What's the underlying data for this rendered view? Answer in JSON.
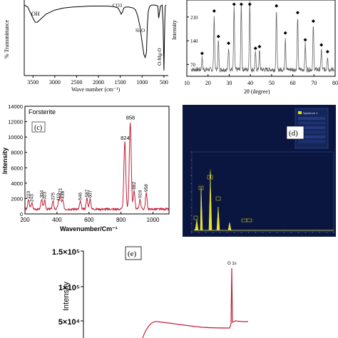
{
  "chart_data": [
    {
      "id": "a",
      "type": "line",
      "xlabel": "Wave number (cm⁻¹)",
      "ylabel": "% Transmittance",
      "x_ticks": [
        "3500",
        "3000",
        "2500",
        "2000",
        "1500",
        "1000",
        "500"
      ],
      "xlim": [
        3700,
        400
      ],
      "annotations": [
        "OH",
        "CO3",
        "Si-O",
        "O-Mg-O"
      ],
      "series": [
        {
          "x": [
            3750,
            3620,
            3500,
            3450,
            3400,
            3300,
            3200,
            3000,
            2800,
            2600,
            2400,
            2200,
            2000,
            1800,
            1650,
            1550,
            1500,
            1480,
            1450,
            1420,
            1380,
            1300,
            1200,
            1150,
            1100,
            1050,
            1000,
            960,
            930,
            900,
            880,
            860,
            840,
            820,
            780,
            700,
            640,
            620,
            600,
            580,
            540,
            520,
            500,
            480,
            470,
            450
          ],
          "y": [
            95,
            93,
            82,
            78,
            78,
            82,
            86,
            90,
            92,
            93,
            93.5,
            94,
            94,
            94,
            93.5,
            92,
            88,
            86,
            88,
            92,
            93,
            93,
            92,
            90,
            84,
            74,
            58,
            46,
            43,
            48,
            74,
            88,
            92,
            94,
            95,
            95,
            94,
            82,
            88,
            94,
            95,
            78,
            30,
            80,
            94,
            95
          ]
        }
      ]
    },
    {
      "id": "b",
      "type": "line",
      "xlabel": "2θ (degree)",
      "ylabel": "Intensity",
      "x_ticks": [
        "10",
        "20",
        "30",
        "40",
        "50",
        "60",
        "70",
        "80"
      ],
      "y_ticks": [
        "70",
        "140",
        "210"
      ],
      "xlim": [
        10,
        80
      ],
      "ylim": [
        35,
        260
      ],
      "peaks_2theta": [
        17.2,
        22.9,
        24.9,
        29.7,
        32.3,
        35.7,
        39.7,
        42.4,
        44.3,
        52.3,
        56.5,
        62.3,
        65.9,
        69.7,
        73.5,
        76.4
      ],
      "peaks_intensity": [
        90,
        215,
        140,
        120,
        235,
        250,
        255,
        105,
        110,
        230,
        150,
        210,
        130,
        185,
        115,
        95
      ]
    },
    {
      "id": "c",
      "type": "line",
      "title": "Forsterite",
      "panel_label": "(c)",
      "xlabel": "Wavenumber/Cm⁻¹",
      "ylabel": "Intensity",
      "x_ticks": [
        "200",
        "400",
        "600",
        "800",
        "1000"
      ],
      "y_ticks": [
        "0",
        "2000",
        "4000",
        "6000",
        "8000",
        "10000",
        "12000",
        "14000"
      ],
      "xlim": [
        200,
        1100
      ],
      "ylim": [
        0,
        14000
      ],
      "peak_labels": [
        "223",
        "243",
        "304",
        "323",
        "375",
        "410",
        "421",
        "436",
        "546",
        "587",
        "607",
        "824",
        "858",
        "882",
        "919",
        "958"
      ],
      "peaks": [
        [
          223,
          1700
        ],
        [
          243,
          1300
        ],
        [
          304,
          1800
        ],
        [
          323,
          1600
        ],
        [
          375,
          1500
        ],
        [
          410,
          1400
        ],
        [
          421,
          2100
        ],
        [
          436,
          1700
        ],
        [
          546,
          1500
        ],
        [
          587,
          1900
        ],
        [
          607,
          1800
        ],
        [
          824,
          9200
        ],
        [
          858,
          11800
        ],
        [
          882,
          2900
        ],
        [
          919,
          1800
        ],
        [
          958,
          2600
        ]
      ]
    },
    {
      "id": "e",
      "type": "line",
      "panel_label": "(e)",
      "ylabel": "Intensity",
      "y_ticks": [
        "5×10⁴",
        "1×10⁵",
        "1.5×10⁵"
      ],
      "annotations": [
        "O 1s"
      ]
    }
  ],
  "eds": {
    "panel_label": "(d)",
    "legend_label": "Spectrum 1"
  }
}
